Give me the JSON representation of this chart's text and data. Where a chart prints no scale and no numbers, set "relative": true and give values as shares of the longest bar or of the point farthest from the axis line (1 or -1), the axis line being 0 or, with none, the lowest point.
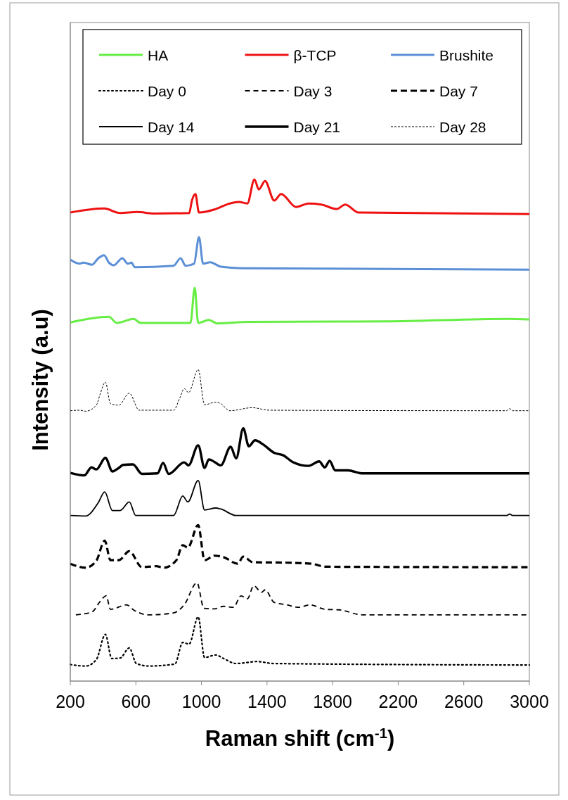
{
  "chart_data": {
    "type": "line",
    "relative": true,
    "xlabel": "Raman shift (cm$^{-1}$)",
    "ylabel": "Intensity (a.u)",
    "xlim": [
      200,
      3000
    ],
    "xticks": [
      200,
      600,
      1000,
      1400,
      1800,
      2200,
      2600,
      3000
    ],
    "legend": "top",
    "grid": false,
    "marker": "none",
    "series": [
      {
        "name": "HA",
        "color": "#66ee44",
        "line_style": "solid",
        "x": [
          200,
          436,
          483,
          586,
          629,
          933,
          959,
          980,
          1045,
          1096,
          1289,
          2120,
          2870,
          3000
        ],
        "values": [
          0.715,
          0.726,
          0.714,
          0.722,
          0.714,
          0.714,
          0.784,
          0.714,
          0.72,
          0.713,
          0.716,
          0.717,
          0.722,
          0.721
        ]
      },
      {
        "name": "β-TCP",
        "color": "#ee1111",
        "line_style": "solid",
        "x": [
          200,
          406,
          504,
          607,
          715,
          925,
          942,
          963,
          985,
          1079,
          1173,
          1229,
          1280,
          1323,
          1350,
          1388,
          1444,
          1486,
          1577,
          1654,
          1731,
          1825,
          1877,
          1958,
          3000
        ],
        "values": [
          0.934,
          0.942,
          0.933,
          0.935,
          0.932,
          0.933,
          0.958,
          0.971,
          0.934,
          0.94,
          0.952,
          0.955,
          0.952,
          1,
          0.98,
          0.997,
          0.958,
          0.971,
          0.945,
          0.952,
          0.95,
          0.941,
          0.95,
          0.934,
          0.931
        ]
      },
      {
        "name": "Brushite",
        "color": "#5b8fd6",
        "line_style": "solid",
        "x": [
          200,
          255,
          280,
          333,
          371,
          406,
          436,
          466,
          517,
          551,
          573,
          594,
          830,
          873,
          903,
          955,
          985,
          1010,
          1053,
          1118,
          1245,
          3000
        ],
        "values": [
          0.84,
          0.832,
          0.834,
          0.83,
          0.843,
          0.849,
          0.834,
          0.829,
          0.843,
          0.832,
          0.834,
          0.825,
          0.828,
          0.843,
          0.828,
          0.832,
          0.885,
          0.832,
          0.835,
          0.826,
          0.823,
          0.82
        ]
      },
      {
        "name": "Day 0",
        "color": "#000000",
        "line_style": "dotted",
        "x": [
          200,
          294,
          359,
          414,
          453,
          504,
          560,
          603,
          680,
          838,
          886,
          925,
          980,
          1019,
          1088,
          1135,
          1212,
          1340,
          1440,
          3000
        ],
        "values": [
          0.033,
          0.03,
          0.043,
          0.093,
          0.045,
          0.046,
          0.066,
          0.035,
          0.03,
          0.034,
          0.077,
          0.074,
          0.128,
          0.047,
          0.052,
          0.045,
          0.035,
          0.039,
          0.035,
          0.032
        ]
      },
      {
        "name": "Day 3",
        "color": "#000000",
        "line_style": "dashed",
        "x": [
          234,
          333,
          380,
          419,
          445,
          543,
          590,
          680,
          830,
          895,
          973,
          1015,
          1079,
          1135,
          1195,
          1242,
          1280,
          1319,
          1366,
          1388,
          1443,
          1520,
          1594,
          1662,
          1757,
          1842,
          1980,
          3000
        ],
        "values": [
          0.132,
          0.138,
          0.158,
          0.17,
          0.143,
          0.152,
          0.141,
          0.132,
          0.136,
          0.152,
          0.196,
          0.145,
          0.144,
          0.149,
          0.147,
          0.17,
          0.164,
          0.19,
          0.177,
          0.182,
          0.157,
          0.152,
          0.147,
          0.152,
          0.143,
          0.142,
          0.132,
          0.132
        ]
      },
      {
        "name": "Day 7",
        "color": "#000000",
        "line_style": "dashed",
        "x": [
          200,
          294,
          359,
          410,
          445,
          496,
          560,
          637,
          723,
          770,
          847,
          886,
          917,
          980,
          1019,
          1079,
          1135,
          1221,
          1255,
          1314,
          1522,
          1671,
          1757,
          3000
        ],
        "values": [
          0.234,
          0.226,
          0.24,
          0.28,
          0.241,
          0.241,
          0.259,
          0.227,
          0.229,
          0.226,
          0.241,
          0.271,
          0.266,
          0.311,
          0.241,
          0.25,
          0.247,
          0.234,
          0.248,
          0.237,
          0.236,
          0.234,
          0.228,
          0.227
        ]
      },
      {
        "name": "Day 14",
        "color": "#000000",
        "line_style": "solid",
        "x": [
          200,
          294,
          371,
          410,
          457,
          504,
          560,
          599,
          830,
          886,
          917,
          980,
          1019,
          1088,
          1118,
          1212,
          2860,
          2880,
          2900,
          3000
        ],
        "values": [
          0.33,
          0.329,
          0.356,
          0.377,
          0.34,
          0.34,
          0.357,
          0.33,
          0.33,
          0.369,
          0.357,
          0.4,
          0.341,
          0.345,
          0.343,
          0.33,
          0.33,
          0.333,
          0.33,
          0.33
        ]
      },
      {
        "name": "Day 21",
        "color": "#000000",
        "line_style": "solid",
        "x": [
          200,
          286,
          329,
          359,
          414,
          457,
          496,
          522,
          582,
          637,
          732,
          766,
          800,
          895,
          921,
          980,
          1019,
          1045,
          1079,
          1118,
          1178,
          1212,
          1255,
          1289,
          1327,
          1379,
          1443,
          1499,
          1555,
          1654,
          1718,
          1752,
          1782,
          1816,
          1893,
          1980,
          3000
        ],
        "values": [
          0.415,
          0.41,
          0.426,
          0.422,
          0.445,
          0.418,
          0.425,
          0.431,
          0.432,
          0.413,
          0.414,
          0.435,
          0.413,
          0.436,
          0.43,
          0.47,
          0.425,
          0.442,
          0.437,
          0.43,
          0.467,
          0.444,
          0.504,
          0.468,
          0.48,
          0.471,
          0.455,
          0.45,
          0.437,
          0.429,
          0.438,
          0.426,
          0.439,
          0.42,
          0.42,
          0.414,
          0.414
        ]
      },
      {
        "name": "Day 28",
        "color": "#000000",
        "line_style": "dashed",
        "x": [
          200,
          256,
          294,
          359,
          384,
          414,
          445,
          496,
          560,
          620,
          830,
          869,
          895,
          921,
          980,
          1019,
          1088,
          1118,
          1173,
          1310,
          1413,
          2860,
          2880,
          2900,
          3000
        ],
        "values": [
          0.539,
          0.54,
          0.538,
          0.55,
          0.574,
          0.596,
          0.553,
          0.55,
          0.574,
          0.54,
          0.54,
          0.565,
          0.583,
          0.575,
          0.621,
          0.551,
          0.556,
          0.553,
          0.539,
          0.545,
          0.54,
          0.539,
          0.543,
          0.539,
          0.539
        ]
      }
    ]
  }
}
